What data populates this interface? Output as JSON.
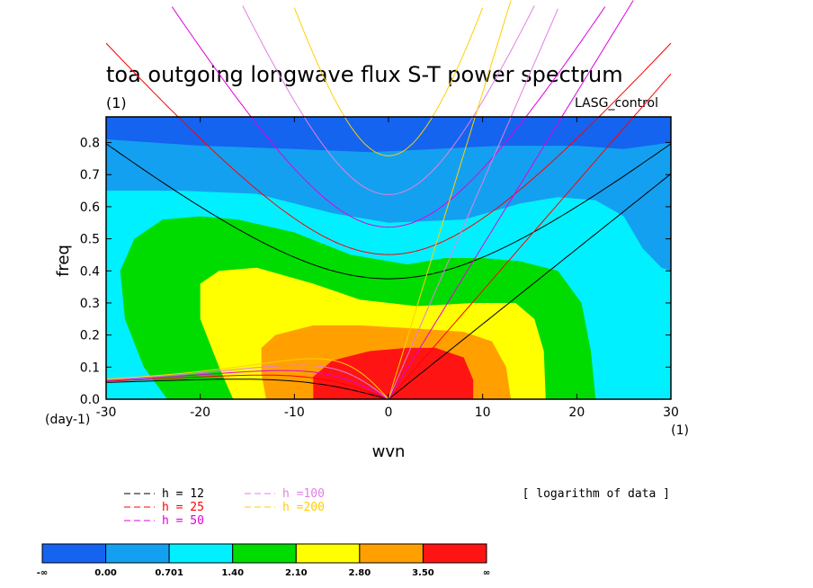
{
  "chart_data": {
    "type": "heatmap",
    "title": "toa outgoing longwave flux S-T power spectrum",
    "title_unit": "(1)",
    "subtitle_right": "LASG_control",
    "xlabel": "wvn",
    "xlabel_unit": "(1)",
    "ylabel": "freq",
    "ylabel_unit": "(day-1)",
    "xlim": [
      -30,
      30
    ],
    "ylim": [
      0,
      0.88
    ],
    "xticks": [
      "-30",
      "-20",
      "-10",
      "0",
      "10",
      "20",
      "30"
    ],
    "yticks": [
      "0.0",
      "0.1",
      "0.2",
      "0.3",
      "0.4",
      "0.5",
      "0.6",
      "0.7",
      "0.8"
    ],
    "data_note": "[ logarithm of data ]",
    "levels": [
      "-∞",
      "0.00",
      "0.701",
      "1.40",
      "2.10",
      "2.80",
      "3.50",
      "∞"
    ],
    "level_colors": [
      "#1464f0",
      "#14a0f0",
      "#00f0ff",
      "#00dc00",
      "#ffff00",
      "#ffa000",
      "#ff1414"
    ],
    "contour_regions": [
      {
        "level": "0.00-0.701",
        "color": "#14a0f0",
        "boundary": [
          [
            -30,
            0.81
          ],
          [
            -20,
            0.79
          ],
          [
            -10,
            0.78
          ],
          [
            -2,
            0.77
          ],
          [
            5,
            0.78
          ],
          [
            12,
            0.79
          ],
          [
            20,
            0.79
          ],
          [
            25,
            0.78
          ],
          [
            30,
            0.8
          ],
          [
            30,
            0
          ],
          [
            -30,
            0
          ]
        ]
      },
      {
        "level": "0.701-1.40",
        "color": "#00f0ff",
        "boundary": [
          [
            -30,
            0.65
          ],
          [
            -22,
            0.65
          ],
          [
            -14,
            0.64
          ],
          [
            -6,
            0.58
          ],
          [
            0,
            0.55
          ],
          [
            8,
            0.56
          ],
          [
            14,
            0.61
          ],
          [
            18,
            0.63
          ],
          [
            22,
            0.62
          ],
          [
            25,
            0.57
          ],
          [
            27,
            0.47
          ],
          [
            29,
            0.41
          ],
          [
            30,
            0.4
          ],
          [
            30,
            0
          ],
          [
            -30,
            0
          ]
        ]
      },
      {
        "level": "1.40-2.10",
        "color": "#00dc00",
        "boundary": [
          [
            -23.5,
            0
          ],
          [
            -26,
            0.1
          ],
          [
            -28,
            0.25
          ],
          [
            -28.5,
            0.4
          ],
          [
            -27,
            0.5
          ],
          [
            -24,
            0.56
          ],
          [
            -20,
            0.57
          ],
          [
            -16,
            0.56
          ],
          [
            -10,
            0.52
          ],
          [
            -4,
            0.45
          ],
          [
            2,
            0.42
          ],
          [
            6,
            0.44
          ],
          [
            10,
            0.44
          ],
          [
            14,
            0.43
          ],
          [
            18,
            0.4
          ],
          [
            20.5,
            0.3
          ],
          [
            21.5,
            0.15
          ],
          [
            22,
            0
          ],
          [
            -23.5,
            0
          ]
        ]
      },
      {
        "level": "2.10-2.80",
        "color": "#ffff00",
        "boundary": [
          [
            -16.5,
            0
          ],
          [
            -18,
            0.1
          ],
          [
            -20,
            0.25
          ],
          [
            -20,
            0.36
          ],
          [
            -18,
            0.4
          ],
          [
            -14,
            0.41
          ],
          [
            -8,
            0.36
          ],
          [
            -3,
            0.31
          ],
          [
            3,
            0.29
          ],
          [
            9,
            0.3
          ],
          [
            13.5,
            0.3
          ],
          [
            15.5,
            0.25
          ],
          [
            16.5,
            0.15
          ],
          [
            16.7,
            0
          ],
          [
            -16.5,
            0
          ]
        ]
      },
      {
        "level": "2.80-3.50",
        "color": "#ffa000",
        "boundary": [
          [
            -13,
            0
          ],
          [
            -13.5,
            0.08
          ],
          [
            -13.5,
            0.16
          ],
          [
            -12,
            0.2
          ],
          [
            -8,
            0.23
          ],
          [
            -3,
            0.23
          ],
          [
            3,
            0.22
          ],
          [
            8,
            0.21
          ],
          [
            11,
            0.18
          ],
          [
            12.5,
            0.1
          ],
          [
            13,
            0
          ],
          [
            -13,
            0
          ]
        ]
      },
      {
        "level": "3.50-∞",
        "color": "#ff1414",
        "boundary": [
          [
            -8,
            0
          ],
          [
            -8,
            0.07
          ],
          [
            -6,
            0.12
          ],
          [
            -2,
            0.15
          ],
          [
            2,
            0.16
          ],
          [
            5,
            0.16
          ],
          [
            8,
            0.13
          ],
          [
            9,
            0.06
          ],
          [
            9,
            0
          ],
          [
            -8,
            0
          ]
        ]
      }
    ],
    "dispersion_legend": [
      {
        "label": "h = 12",
        "color": "#000000"
      },
      {
        "label": "h = 25",
        "color": "#ff0000"
      },
      {
        "label": "h = 50",
        "color": "#e000e0"
      },
      {
        "label": "h =100",
        "color": "#e080e0"
      },
      {
        "label": "h =200",
        "color": "#ffd000"
      }
    ]
  }
}
